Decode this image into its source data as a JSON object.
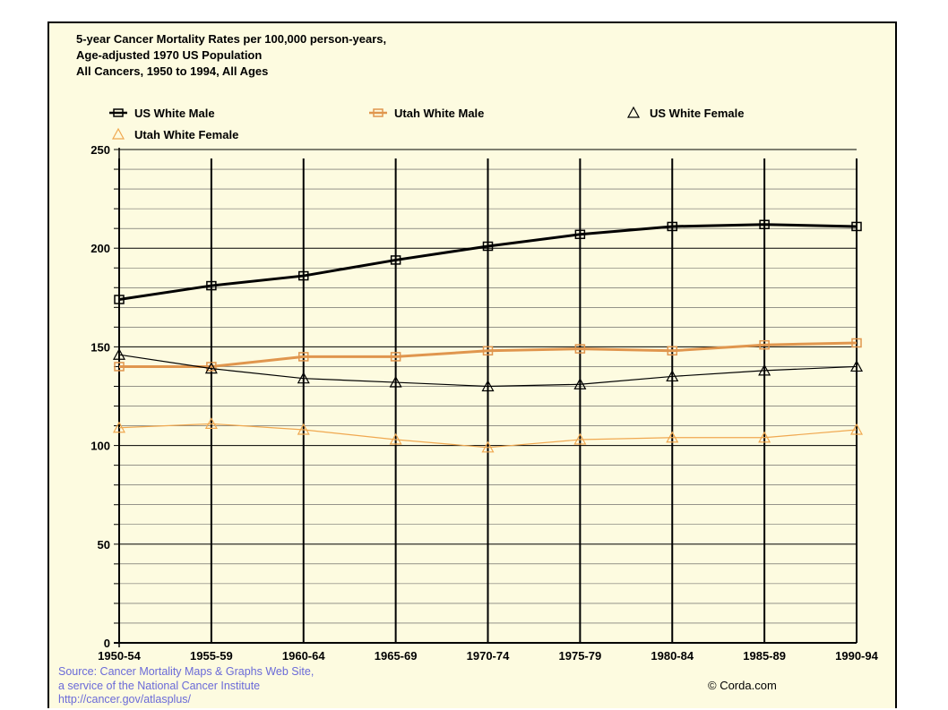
{
  "chart_data": {
    "type": "line",
    "title_lines": [
      "5-year Cancer Mortality Rates per 100,000 person-years,",
      "Age-adjusted 1970 US Population",
      "All Cancers, 1950 to 1994, All Ages"
    ],
    "categories": [
      "1950-54",
      "1955-59",
      "1960-64",
      "1965-69",
      "1970-74",
      "1975-79",
      "1980-84",
      "1985-89",
      "1990-94"
    ],
    "ylim": [
      0,
      250
    ],
    "yticks": [
      0,
      50,
      100,
      150,
      200,
      250
    ],
    "grid": true,
    "legend_position": "top",
    "series": [
      {
        "name": "US White Male",
        "color": "#000000",
        "marker": "square",
        "line": "thick",
        "values": [
          174,
          181,
          186,
          194,
          201,
          207,
          211,
          212,
          211
        ]
      },
      {
        "name": "Utah White Male",
        "color": "#e0964e",
        "marker": "square",
        "line": "thick",
        "values": [
          140,
          140,
          145,
          145,
          148,
          149,
          148,
          151,
          152
        ]
      },
      {
        "name": "US White Female",
        "color": "#000000",
        "marker": "triangle",
        "line": "thin",
        "values": [
          146,
          139,
          134,
          132,
          130,
          131,
          135,
          138,
          140
        ]
      },
      {
        "name": "Utah White Female",
        "color": "#f0a850",
        "marker": "triangle",
        "line": "thin",
        "values": [
          109,
          111,
          108,
          103,
          99,
          103,
          104,
          104,
          108
        ]
      }
    ]
  },
  "source_lines": [
    "Source:  Cancer Mortality Maps & Graphs Web Site,",
    "a service of the National Cancer Institute",
    "http://cancer.gov/atlasplus/"
  ],
  "credit": "© Corda.com"
}
